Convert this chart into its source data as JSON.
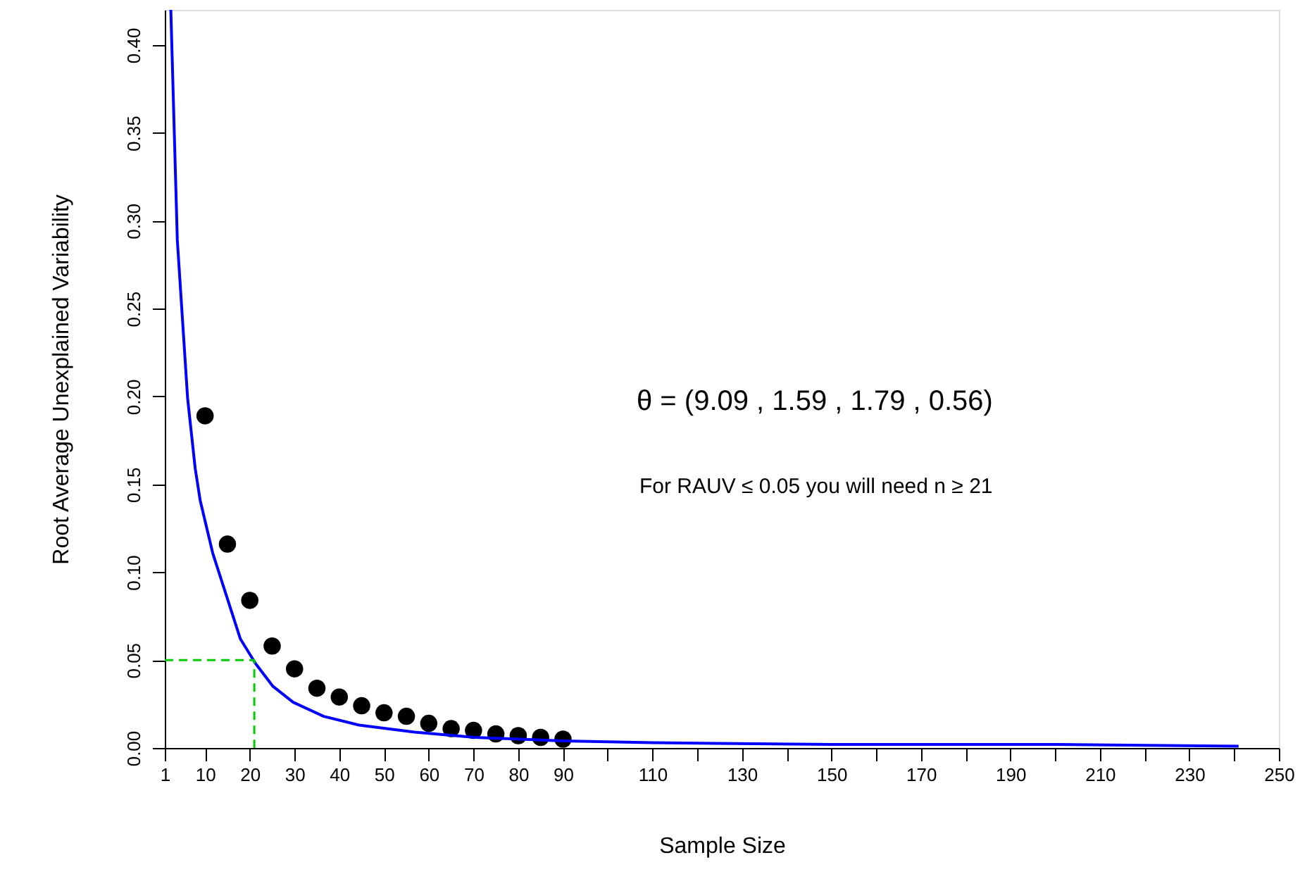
{
  "chart_data": {
    "type": "scatter",
    "xlabel": "Sample Size",
    "ylabel": "Root Average Unexplained Variability",
    "xlim": [
      1,
      250
    ],
    "ylim": [
      0,
      0.42
    ],
    "xticks": [
      1,
      10,
      20,
      30,
      40,
      50,
      60,
      70,
      80,
      90,
      {
        "value": 100,
        "label": null
      },
      110,
      {
        "value": 120,
        "label": null
      },
      130,
      {
        "value": 140,
        "label": null
      },
      150,
      {
        "value": 160,
        "label": null
      },
      170,
      {
        "value": 180,
        "label": null
      },
      190,
      {
        "value": 200,
        "label": null
      },
      210,
      {
        "value": 220,
        "label": null
      },
      230,
      {
        "value": 240,
        "label": null
      },
      250
    ],
    "yticks": [
      {
        "value": 0,
        "label": "0.00"
      },
      {
        "value": 0.05,
        "label": "0.05"
      },
      {
        "value": 0.1,
        "label": "0.10"
      },
      {
        "value": 0.15,
        "label": "0.15"
      },
      {
        "value": 0.2,
        "label": "0.20"
      },
      {
        "value": 0.25,
        "label": "0.25"
      },
      {
        "value": 0.3,
        "label": "0.30"
      },
      {
        "value": 0.35,
        "label": "0.35"
      },
      {
        "value": 0.4,
        "label": "0.40"
      }
    ],
    "grid": false,
    "series": [
      {
        "color": "#000000",
        "marker": "circle",
        "x": [
          10,
          15,
          20,
          25,
          30,
          35,
          40,
          45,
          50,
          55,
          60,
          65,
          70,
          75,
          80,
          85,
          90
        ],
        "values": [
          0.189,
          0.116,
          0.084,
          0.058,
          0.045,
          0.034,
          0.029,
          0.024,
          0.02,
          0.018,
          0.014,
          0.011,
          0.01,
          0.008,
          0.007,
          0.006,
          0.005
        ]
      },
      {
        "type": "line",
        "color": "#0000ff",
        "marker": "none",
        "line_style": "solid",
        "x": [
          2.35,
          3.8,
          6.1,
          7.8,
          8.9,
          11.7,
          17.9,
          21.3,
          25.2,
          29.7,
          36.5,
          44.4,
          56.8,
          70.3,
          90,
          110,
          150,
          200,
          241
        ],
        "values": [
          0.42,
          0.289,
          0.199,
          0.159,
          0.141,
          0.111,
          0.062,
          0.048,
          0.035,
          0.026,
          0.018,
          0.013,
          0.009,
          0.006,
          0.004,
          0.003,
          0.002,
          0.002,
          0.001
        ]
      },
      {
        "type": "line",
        "color": "#00cc00",
        "marker": "none",
        "line_style": "dashed",
        "x": [
          1,
          21,
          21
        ],
        "values": [
          0.05,
          0.05,
          0
        ]
      }
    ],
    "annotations": [
      "θ = (9.09 , 1.59 , 1.79 , 0.56)",
      "For RAUV ≤ 0.05 you will need n ≥ 21"
    ]
  }
}
